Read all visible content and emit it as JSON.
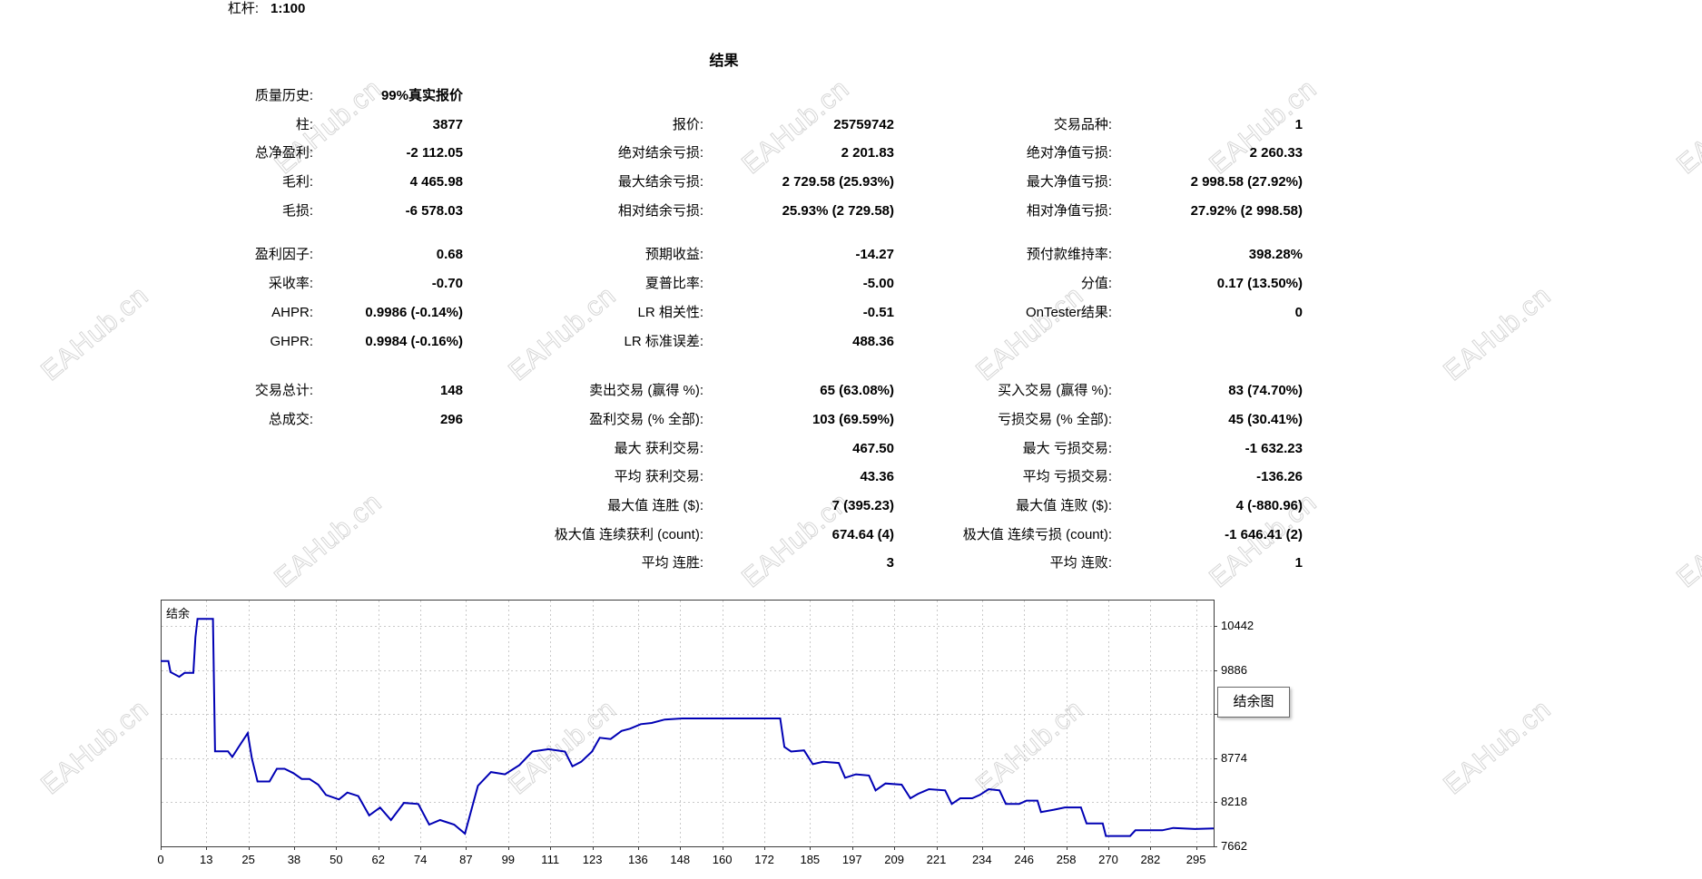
{
  "header": {
    "leverage_label": "杠杆:",
    "leverage_value": "1:100"
  },
  "title": "结果",
  "watermark": {
    "text": "EAHub.cn"
  },
  "tooltip": {
    "label": "结余图"
  },
  "stats": {
    "groups": [
      {
        "rows": [
          [
            "质量历史:",
            "99%真实报价",
            "",
            "",
            "",
            ""
          ],
          [
            "柱:",
            "3877",
            "报价:",
            "25759742",
            "交易品种:",
            "1"
          ],
          [
            "总净盈利:",
            "-2 112.05",
            "绝对结余亏损:",
            "2 201.83",
            "绝对净值亏损:",
            "2 260.33"
          ],
          [
            "毛利:",
            "4 465.98",
            "最大结余亏损:",
            "2 729.58 (25.93%)",
            "最大净值亏损:",
            "2 998.58 (27.92%)"
          ],
          [
            "毛损:",
            "-6 578.03",
            "相对结余亏损:",
            "25.93% (2 729.58)",
            "相对净值亏损:",
            "27.92% (2 998.58)"
          ]
        ]
      },
      {
        "rows": [
          [
            "盈利因子:",
            "0.68",
            "预期收益:",
            "-14.27",
            "预付款维持率:",
            "398.28%"
          ],
          [
            "采收率:",
            "-0.70",
            "夏普比率:",
            "-5.00",
            "分值:",
            "0.17 (13.50%)"
          ],
          [
            "AHPR:",
            "0.9986 (-0.14%)",
            "LR 相关性:",
            "-0.51",
            "OnTester结果:",
            "0"
          ],
          [
            "GHPR:",
            "0.9984 (-0.16%)",
            "LR 标准误差:",
            "488.36",
            "",
            ""
          ]
        ]
      },
      {
        "rows": [
          [
            "交易总计:",
            "148",
            "卖出交易 (赢得 %):",
            "65 (63.08%)",
            "买入交易 (赢得 %):",
            "83 (74.70%)"
          ],
          [
            "总成交:",
            "296",
            "盈利交易 (% 全部):",
            "103 (69.59%)",
            "亏损交易 (% 全部):",
            "45 (30.41%)"
          ],
          [
            "",
            "",
            "最大 获利交易:",
            "467.50",
            "最大 亏损交易:",
            "-1 632.23"
          ],
          [
            "",
            "",
            "平均 获利交易:",
            "43.36",
            "平均 亏损交易:",
            "-136.26"
          ],
          [
            "",
            "",
            "最大值 连胜 ($):",
            "7 (395.23)",
            "最大值 连败 ($):",
            "4 (-880.96)"
          ],
          [
            "",
            "",
            "极大值 连续获利 (count):",
            "674.64 (4)",
            "极大值 连续亏损 (count):",
            "-1 646.41 (2)"
          ],
          [
            "",
            "",
            "平均 连胜:",
            "3",
            "平均 连败:",
            "1"
          ]
        ]
      }
    ]
  },
  "chart_data": {
    "type": "line",
    "title": "结余",
    "xlabel": "",
    "ylabel": "",
    "legend": "none",
    "grid": "dashed",
    "xlim": [
      0,
      300
    ],
    "ylim": [
      7662,
      10774
    ],
    "x_ticks": [
      0,
      13,
      25,
      38,
      50,
      62,
      74,
      87,
      99,
      111,
      123,
      136,
      148,
      160,
      172,
      185,
      197,
      209,
      221,
      234,
      246,
      258,
      270,
      282,
      295
    ],
    "y_ticks": [
      7662,
      8218,
      8774,
      9330,
      9886,
      10442
    ],
    "series": [
      {
        "name": "结余",
        "color": "#0000b4",
        "points": [
          [
            0,
            10000
          ],
          [
            2.2,
            10000
          ],
          [
            2.8,
            9860
          ],
          [
            5.3,
            9800
          ],
          [
            6.8,
            9850
          ],
          [
            9.3,
            9850
          ],
          [
            9.9,
            10300
          ],
          [
            10.5,
            10530
          ],
          [
            14.9,
            10530
          ],
          [
            15.5,
            8860
          ],
          [
            19.2,
            8860
          ],
          [
            20.4,
            8790
          ],
          [
            22.3,
            8920
          ],
          [
            24.8,
            9090
          ],
          [
            26,
            8770
          ],
          [
            27.6,
            8480
          ],
          [
            31,
            8480
          ],
          [
            33.1,
            8640
          ],
          [
            35.3,
            8640
          ],
          [
            37.8,
            8585
          ],
          [
            40.2,
            8512
          ],
          [
            42.4,
            8512
          ],
          [
            44.9,
            8440
          ],
          [
            47.1,
            8311
          ],
          [
            50.8,
            8253
          ],
          [
            53.2,
            8340
          ],
          [
            56.3,
            8296
          ],
          [
            59.4,
            8052
          ],
          [
            62.5,
            8152
          ],
          [
            65.6,
            7994
          ],
          [
            69.3,
            8210
          ],
          [
            73.4,
            8196
          ],
          [
            76.5,
            7937
          ],
          [
            79.6,
            7994
          ],
          [
            83.6,
            7937
          ],
          [
            86.7,
            7822
          ],
          [
            90.4,
            8426
          ],
          [
            94.1,
            8599
          ],
          [
            98.1,
            8570
          ],
          [
            102.2,
            8686
          ],
          [
            105.9,
            8858
          ],
          [
            110.5,
            8887
          ],
          [
            115.2,
            8858
          ],
          [
            117.3,
            8671
          ],
          [
            119.8,
            8728
          ],
          [
            122.9,
            8858
          ],
          [
            125.1,
            9031
          ],
          [
            128.2,
            9016
          ],
          [
            131.3,
            9117
          ],
          [
            133.7,
            9146
          ],
          [
            136.8,
            9203
          ],
          [
            139.9,
            9218
          ],
          [
            143.6,
            9261
          ],
          [
            148.6,
            9275
          ],
          [
            176.5,
            9275
          ],
          [
            177.7,
            8916
          ],
          [
            179.6,
            8858
          ],
          [
            183.3,
            8872
          ],
          [
            185.8,
            8699
          ],
          [
            188.8,
            8728
          ],
          [
            193.2,
            8714
          ],
          [
            195,
            8527
          ],
          [
            198.1,
            8570
          ],
          [
            201.8,
            8556
          ],
          [
            203.7,
            8368
          ],
          [
            206.5,
            8455
          ],
          [
            211.1,
            8440
          ],
          [
            213.6,
            8268
          ],
          [
            215.8,
            8325
          ],
          [
            218.9,
            8383
          ],
          [
            223.5,
            8368
          ],
          [
            225.4,
            8196
          ],
          [
            227.8,
            8268
          ],
          [
            231.2,
            8268
          ],
          [
            233.4,
            8311
          ],
          [
            235.9,
            8383
          ],
          [
            239,
            8368
          ],
          [
            240.8,
            8196
          ],
          [
            244.6,
            8196
          ],
          [
            246.7,
            8239
          ],
          [
            249.8,
            8239
          ],
          [
            250.8,
            8095
          ],
          [
            254.5,
            8124
          ],
          [
            257.6,
            8153
          ],
          [
            262.2,
            8153
          ],
          [
            263.8,
            7951
          ],
          [
            268.4,
            7951
          ],
          [
            269.3,
            7793
          ],
          [
            276.2,
            7793
          ],
          [
            277.7,
            7865
          ],
          [
            285.4,
            7865
          ],
          [
            288.5,
            7894
          ],
          [
            294.7,
            7880
          ],
          [
            300,
            7888
          ]
        ]
      }
    ]
  }
}
